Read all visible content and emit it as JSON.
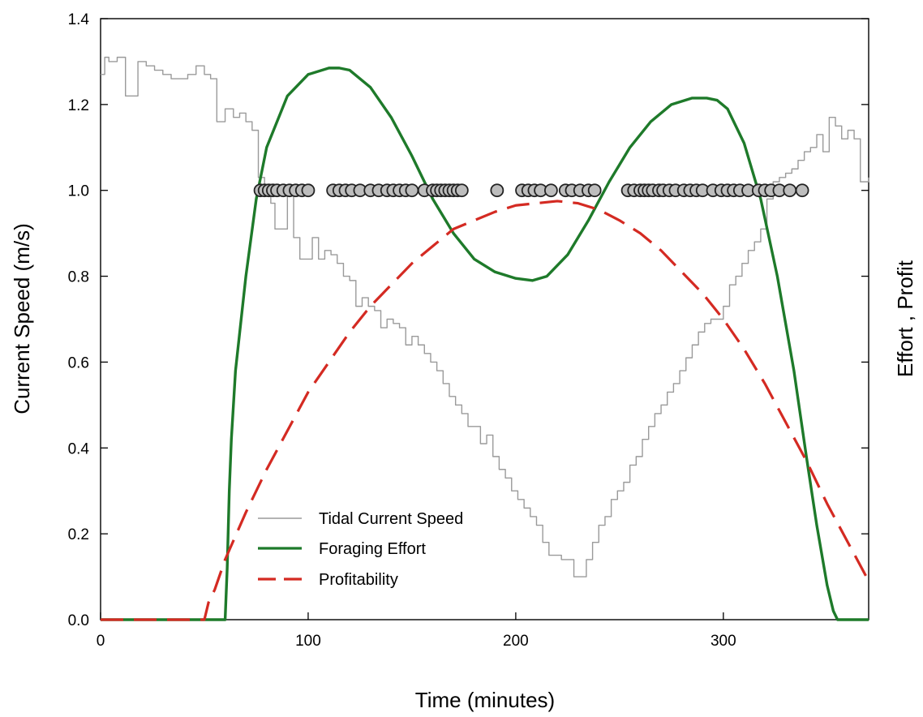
{
  "chart_data": {
    "type": "line",
    "xlabel": "Time (minutes)",
    "ylabel": "Current Speed (m/s)",
    "ylabel_right": "Effort , Profit",
    "xlim": [
      0,
      370
    ],
    "ylim": [
      0,
      1.4
    ],
    "x_ticks": [
      0,
      100,
      200,
      300
    ],
    "y_ticks": [
      0.0,
      0.2,
      0.4,
      0.6,
      0.8,
      1.0,
      1.2,
      1.4
    ],
    "y_tick_labels": [
      "0.0",
      "0.2",
      "0.4",
      "0.6",
      "0.8",
      "1.0",
      "1.2",
      "1.4"
    ],
    "grid": false,
    "legend_placement": "bottom-center",
    "series": [
      {
        "name": "Tidal Current Speed",
        "style": "thin-step",
        "color": "#9a9a9a",
        "x": [
          0,
          2,
          4,
          8,
          12,
          14,
          18,
          22,
          26,
          30,
          34,
          38,
          42,
          46,
          50,
          53,
          56,
          60,
          64,
          67,
          70,
          73,
          76,
          79,
          82,
          84,
          87,
          90,
          93,
          96,
          99,
          102,
          105,
          108,
          111,
          114,
          117,
          120,
          123,
          126,
          129,
          132,
          135,
          138,
          141,
          144,
          147,
          150,
          153,
          156,
          159,
          162,
          165,
          168,
          171,
          174,
          177,
          180,
          183,
          186,
          189,
          192,
          195,
          198,
          201,
          204,
          207,
          210,
          213,
          216,
          219,
          222,
          225,
          228,
          231,
          234,
          237,
          240,
          243,
          246,
          249,
          252,
          255,
          258,
          261,
          264,
          267,
          270,
          273,
          276,
          279,
          282,
          285,
          288,
          291,
          294,
          297,
          300,
          303,
          306,
          309,
          312,
          315,
          318,
          321,
          324,
          327,
          330,
          333,
          336,
          339,
          342,
          345,
          348,
          351,
          354,
          357,
          360,
          363,
          366,
          370
        ],
        "values": [
          1.27,
          1.31,
          1.3,
          1.31,
          1.22,
          1.22,
          1.3,
          1.29,
          1.28,
          1.27,
          1.26,
          1.26,
          1.27,
          1.29,
          1.27,
          1.26,
          1.16,
          1.19,
          1.17,
          1.18,
          1.16,
          1.14,
          1.03,
          1.01,
          0.97,
          0.91,
          0.91,
          1.0,
          0.89,
          0.84,
          0.84,
          0.89,
          0.84,
          0.86,
          0.85,
          0.83,
          0.8,
          0.79,
          0.73,
          0.75,
          0.73,
          0.72,
          0.68,
          0.7,
          0.69,
          0.68,
          0.64,
          0.66,
          0.64,
          0.62,
          0.6,
          0.58,
          0.55,
          0.52,
          0.5,
          0.48,
          0.45,
          0.45,
          0.41,
          0.43,
          0.38,
          0.35,
          0.33,
          0.3,
          0.28,
          0.26,
          0.24,
          0.22,
          0.18,
          0.15,
          0.15,
          0.14,
          0.14,
          0.1,
          0.1,
          0.14,
          0.18,
          0.22,
          0.24,
          0.28,
          0.3,
          0.32,
          0.36,
          0.38,
          0.42,
          0.45,
          0.48,
          0.5,
          0.53,
          0.55,
          0.58,
          0.61,
          0.64,
          0.67,
          0.69,
          0.7,
          0.7,
          0.73,
          0.78,
          0.8,
          0.83,
          0.86,
          0.88,
          0.91,
          0.98,
          1.02,
          1.03,
          1.04,
          1.05,
          1.07,
          1.09,
          1.1,
          1.13,
          1.09,
          1.17,
          1.15,
          1.12,
          1.14,
          1.12,
          1.02,
          1.03
        ]
      },
      {
        "name": "Foraging Effort",
        "style": "solid",
        "color": "#1e7a2a",
        "x": [
          0,
          60,
          61,
          62,
          63,
          65,
          70,
          75,
          80,
          90,
          100,
          110,
          115,
          120,
          130,
          140,
          150,
          160,
          170,
          180,
          190,
          200,
          208,
          215,
          225,
          235,
          245,
          255,
          265,
          275,
          285,
          292,
          297,
          302,
          310,
          318,
          326,
          334,
          340,
          345,
          350,
          353,
          355,
          370
        ],
        "values": [
          0,
          0,
          0.12,
          0.3,
          0.42,
          0.58,
          0.8,
          0.98,
          1.1,
          1.22,
          1.27,
          1.285,
          1.285,
          1.28,
          1.24,
          1.17,
          1.08,
          0.98,
          0.9,
          0.84,
          0.81,
          0.795,
          0.79,
          0.8,
          0.85,
          0.93,
          1.02,
          1.1,
          1.16,
          1.2,
          1.215,
          1.215,
          1.21,
          1.19,
          1.11,
          0.98,
          0.8,
          0.58,
          0.38,
          0.22,
          0.08,
          0.02,
          0,
          0
        ]
      },
      {
        "name": "Profitability",
        "style": "dashed",
        "color": "#d42a22",
        "x": [
          0,
          50,
          52,
          55,
          60,
          70,
          80,
          90,
          100,
          110,
          120,
          130,
          140,
          150,
          160,
          170,
          180,
          190,
          200,
          210,
          220,
          230,
          240,
          250,
          260,
          270,
          280,
          290,
          300,
          310,
          320,
          330,
          340,
          350,
          360,
          370
        ],
        "values": [
          0,
          0,
          0.04,
          0.07,
          0.14,
          0.25,
          0.35,
          0.44,
          0.53,
          0.6,
          0.67,
          0.73,
          0.78,
          0.83,
          0.87,
          0.91,
          0.93,
          0.95,
          0.965,
          0.97,
          0.975,
          0.97,
          0.955,
          0.93,
          0.9,
          0.86,
          0.81,
          0.76,
          0.7,
          0.63,
          0.55,
          0.46,
          0.37,
          0.27,
          0.18,
          0.09
        ]
      }
    ],
    "markers": {
      "style": "gray-circle",
      "color": "#bdbdbd",
      "y": 1.0,
      "x": [
        77,
        79,
        81,
        83,
        85,
        88,
        91,
        94,
        97,
        100,
        112,
        115,
        118,
        121,
        125,
        130,
        134,
        138,
        141,
        144,
        147,
        150,
        156,
        160,
        162,
        164,
        166,
        168,
        170,
        172,
        174,
        191,
        203,
        206,
        209,
        212,
        217,
        224,
        227,
        231,
        235,
        238,
        254,
        257,
        260,
        262,
        264,
        266,
        269,
        271,
        274,
        277,
        281,
        284,
        287,
        290,
        295,
        299,
        302,
        305,
        308,
        312,
        317,
        320,
        323,
        327,
        332,
        338
      ]
    }
  },
  "legend": {
    "items": [
      {
        "label": "Tidal Current Speed",
        "color": "#9a9a9a",
        "style": "thin"
      },
      {
        "label": "Foraging Effort",
        "color": "#1e7a2a",
        "style": "solid"
      },
      {
        "label": "Profitability",
        "color": "#d42a22",
        "style": "dashed"
      }
    ]
  }
}
